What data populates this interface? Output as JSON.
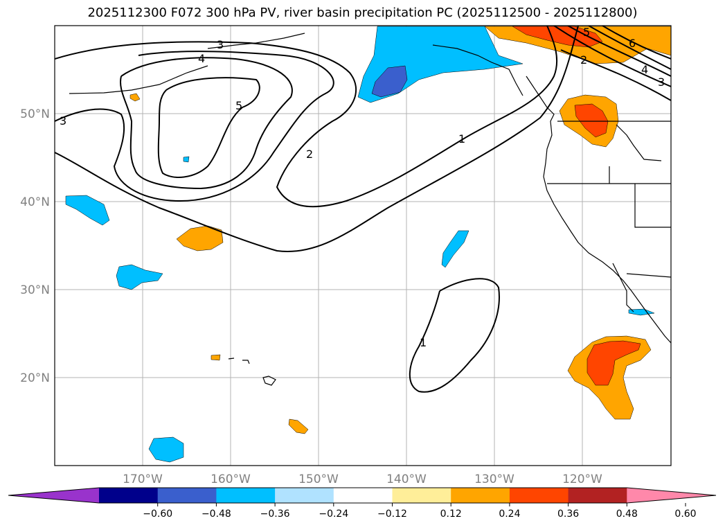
{
  "title": "2025112300 F072 300 hPa PV, river basin precipitation PC (2025112500 - 2025112800)",
  "map": {
    "projection": "plate-carree",
    "lon_range": [
      -180,
      -110
    ],
    "lat_range": [
      10,
      60
    ],
    "lat_ticks": [
      "20°N",
      "30°N",
      "40°N",
      "50°N"
    ],
    "lon_ticks": [
      "170°W",
      "160°W",
      "150°W",
      "140°W",
      "130°W",
      "120°W"
    ],
    "gridlines": true,
    "pv_contour_labels": [
      "3",
      "4",
      "5",
      "3",
      "2",
      "1",
      "1",
      "5",
      "6",
      "2",
      "4",
      "3"
    ]
  },
  "colorbar": {
    "colors": [
      "#9933cc",
      "#00008b",
      "#3a5fcd",
      "#00bfff",
      "#b0e2ff",
      "#ffffff",
      "#ffee99",
      "#ffa500",
      "#ff4500",
      "#b22222",
      "#ff88aa"
    ],
    "ticks": [
      "−0.60",
      "−0.48",
      "−0.36",
      "−0.24",
      "−0.12",
      "0.12",
      "0.24",
      "0.36",
      "0.48",
      "0.60"
    ],
    "extend": "both"
  }
}
